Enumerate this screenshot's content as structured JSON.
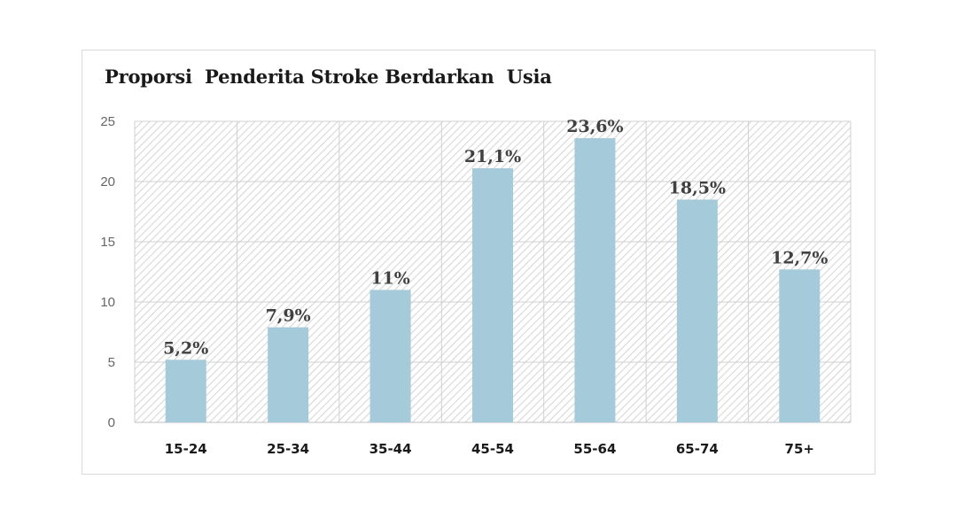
{
  "chart_data": {
    "type": "bar",
    "title": "Proporsi  Penderita Stroke Berdarkan  Usia",
    "xlabel": "",
    "ylabel": "",
    "categories": [
      "15-24",
      "25-34",
      "35-44",
      "45-54",
      "55-64",
      "65-74",
      "75+"
    ],
    "values": [
      5.2,
      7.9,
      11,
      21.1,
      23.6,
      18.5,
      12.7
    ],
    "data_labels": [
      "5,2%",
      "7,9%",
      "11%",
      "21,1%",
      "23,6%",
      "18,5%",
      "12,7%"
    ],
    "ylim": [
      0,
      25
    ],
    "yticks": [
      0,
      5,
      10,
      15,
      20,
      25
    ],
    "grid": true,
    "legend": "none",
    "bar_color": "#a5cad9",
    "plot_background": "hatched light gray"
  }
}
